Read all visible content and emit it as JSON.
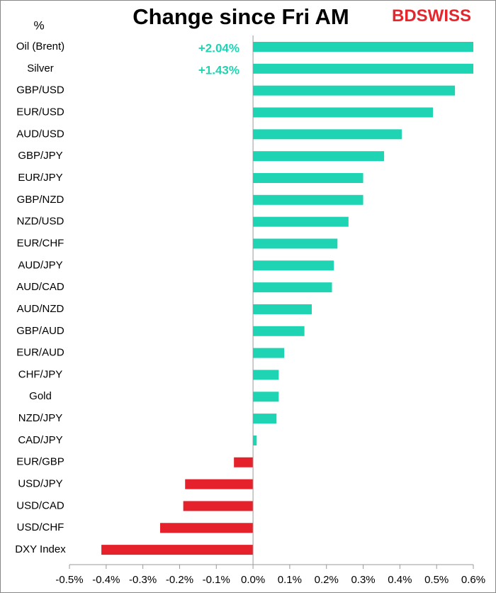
{
  "chart_data": {
    "type": "bar",
    "orientation": "horizontal",
    "title": "Change since Fri AM",
    "unit_label": "%",
    "logo": [
      "BD",
      "SWISS"
    ],
    "logo_colors": [
      "#e5262d",
      "#e5262d"
    ],
    "categories": [
      "Oil (Brent)",
      "Silver",
      "GBP/USD",
      "EUR/USD",
      "AUD/USD",
      "GBP/JPY",
      "EUR/JPY",
      "GBP/NZD",
      "NZD/USD",
      "EUR/CHF",
      "AUD/JPY",
      "AUD/CAD",
      "AUD/NZD",
      "GBP/AUD",
      "EUR/AUD",
      "CHF/JPY",
      "Gold",
      "NZD/JPY",
      "CAD/JPY",
      "EUR/GBP",
      "USD/JPY",
      "USD/CAD",
      "USD/CHF",
      "DXY Index"
    ],
    "values": [
      2.04,
      1.43,
      0.55,
      0.49,
      0.405,
      0.357,
      0.3,
      0.3,
      0.26,
      0.23,
      0.22,
      0.215,
      0.16,
      0.14,
      0.085,
      0.07,
      0.07,
      0.064,
      0.01,
      -0.052,
      -0.185,
      -0.19,
      -0.253,
      -0.413
    ],
    "value_labels": [
      "+2.04%",
      "+1.43%",
      null,
      null,
      null,
      null,
      null,
      null,
      null,
      null,
      null,
      null,
      null,
      null,
      null,
      null,
      null,
      null,
      null,
      null,
      null,
      null,
      null,
      null
    ],
    "colors": {
      "positive": "#1ed4b3",
      "negative": "#e5222b"
    },
    "xlim": [
      -0.5,
      0.6
    ],
    "xticks": [
      {
        "value": -0.5,
        "label": "-0.5%"
      },
      {
        "value": -0.4,
        "label": "-0.4%"
      },
      {
        "value": -0.3,
        "label": "-0.3%"
      },
      {
        "value": -0.2,
        "label": "-0.2%"
      },
      {
        "value": -0.1,
        "label": "-0.1%"
      },
      {
        "value": 0,
        "label": "0.0%"
      },
      {
        "value": 0.1,
        "label": "0.1%"
      },
      {
        "value": 0.2,
        "label": "0.2%"
      },
      {
        "value": 0.3,
        "label": "0.3%"
      },
      {
        "value": 0.4,
        "label": "0.4%"
      },
      {
        "value": 0.5,
        "label": "0.5%"
      },
      {
        "value": 0.6,
        "label": "0.6%"
      }
    ],
    "grid": false
  }
}
